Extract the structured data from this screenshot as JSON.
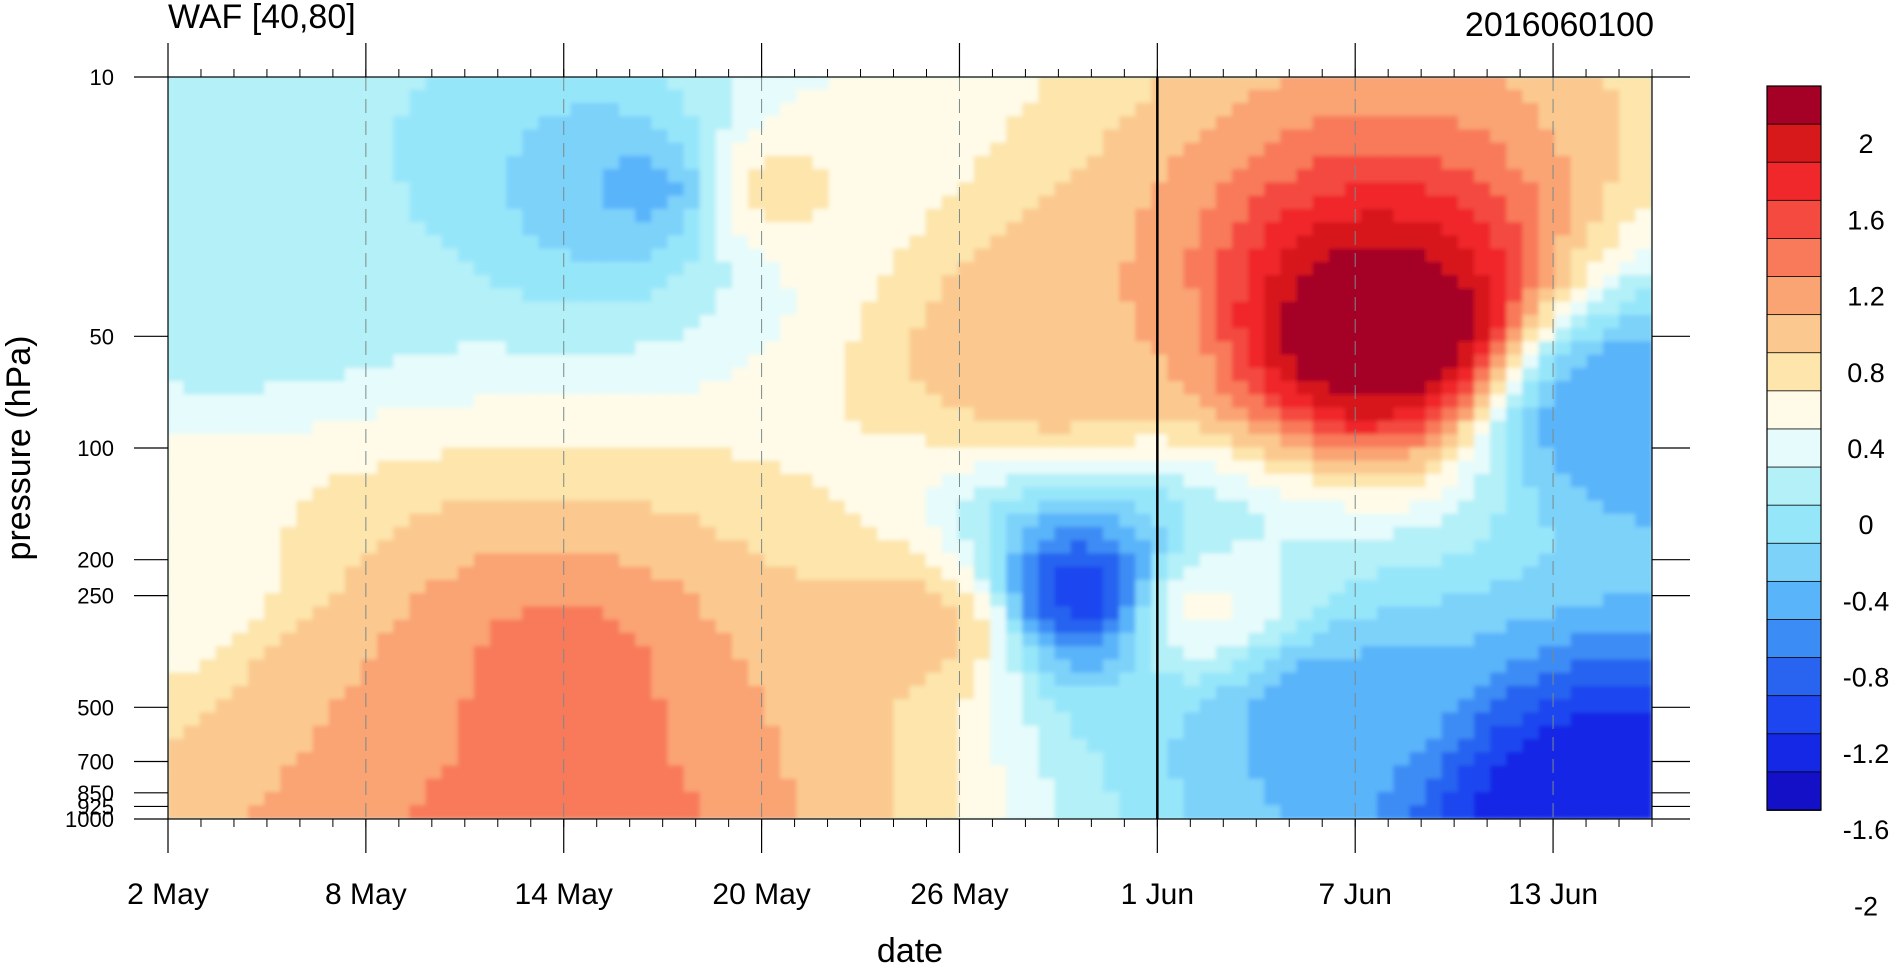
{
  "chart_data": {
    "type": "heatmap",
    "title": "WAF [40,80]",
    "subtitle": "2016060100",
    "xlabel": "date",
    "ylabel": "pressure (hPa)",
    "x_ticks": [
      "2 May",
      "8 May",
      "14 May",
      "20 May",
      "26 May",
      "1 Jun",
      "7 Jun",
      "13 Jun"
    ],
    "x_dates": [
      "2016-05-02",
      "2016-05-08",
      "2016-05-14",
      "2016-05-20",
      "2016-05-26",
      "2016-06-01",
      "2016-06-07",
      "2016-06-13"
    ],
    "x_range": [
      "2016-05-02",
      "2016-06-16"
    ],
    "y_ticks": [
      10,
      50,
      100,
      200,
      250,
      500,
      700,
      850,
      925,
      1000
    ],
    "y_tick_labels": [
      "10",
      "50",
      "100",
      "200",
      "250",
      "500",
      "700",
      "850",
      "925",
      "1000"
    ],
    "y_scale": "log",
    "y_range": [
      1000,
      10
    ],
    "marked_date": "1 Jun",
    "colorbar": {
      "labels": [
        "2",
        "1.6",
        "1.2",
        "0.8",
        "0.4",
        "0",
        "-0.4",
        "-0.8",
        "-1.2",
        "-1.6",
        "-2"
      ],
      "colors": [
        "#a50026",
        "#d7191c",
        "#f0282c",
        "#f44a3f",
        "#f87a5a",
        "#faa373",
        "#fbc98f",
        "#fde5ac",
        "#fffbe8",
        "#e6fbfb",
        "#b4f0f8",
        "#96e6fa",
        "#7dd2fa",
        "#5ab4fa",
        "#3c8cf5",
        "#2864f0",
        "#1e46f0",
        "#1428e6",
        "#1410c8"
      ]
    },
    "features": [
      {
        "date": "2016-06-08",
        "pressure": 50,
        "value": 1.9
      },
      {
        "date": "2016-05-14",
        "pressure": 500,
        "value": 1.0
      },
      {
        "date": "2016-05-14",
        "pressure": 925,
        "value": 1.0
      },
      {
        "date": "2016-05-30",
        "pressure": 250,
        "value": -1.6
      },
      {
        "date": "2016-06-14",
        "pressure": 925,
        "value": -1.8
      },
      {
        "date": "2016-05-17",
        "pressure": 20,
        "value": -0.9
      },
      {
        "date": "2016-06-15",
        "pressure": 80,
        "value": -1.0
      },
      {
        "date": "2016-05-20",
        "pressure": 500,
        "value": 0.6
      },
      {
        "date": "2016-05-25",
        "pressure": 300,
        "value": 0.5
      },
      {
        "date": "2016-05-29",
        "pressure": 55,
        "value": 0.6
      },
      {
        "date": "2016-05-08",
        "pressure": 500,
        "value": 0.6
      },
      {
        "date": "2016-06-02",
        "pressure": 270,
        "value": 0.1
      },
      {
        "date": "2016-05-20",
        "pressure": 20,
        "value": 0.3
      },
      {
        "date": "2016-06-06",
        "pressure": 500,
        "value": -0.9
      },
      {
        "date": "2016-05-02",
        "pressure": 250,
        "value": 0.1
      },
      {
        "date": "2016-05-04",
        "pressure": 30,
        "value": -0.4
      }
    ]
  }
}
